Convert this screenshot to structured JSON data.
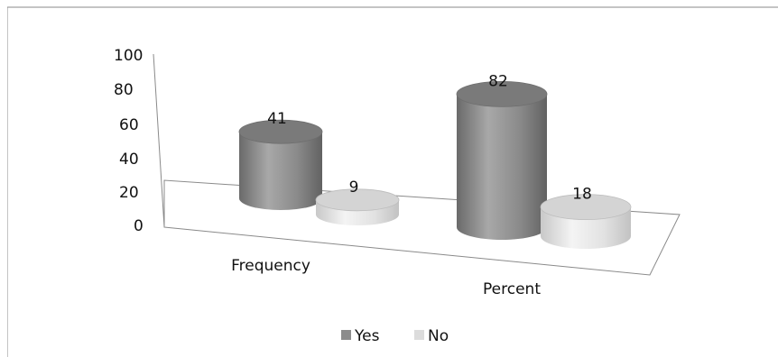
{
  "chart_data": {
    "type": "bar",
    "style": "3d-cylinder",
    "categories": [
      "Frequency",
      "Percent"
    ],
    "series": [
      {
        "name": "Yes",
        "values": [
          41,
          82
        ],
        "color": "#8c8c8c"
      },
      {
        "name": "No",
        "values": [
          9,
          18
        ],
        "color": "#dcdcdc"
      }
    ],
    "y_ticks": [
      "100",
      "80",
      "60",
      "40",
      "20",
      "0"
    ],
    "ylim": [
      0,
      100
    ],
    "legend_position": "bottom",
    "grid": false
  }
}
